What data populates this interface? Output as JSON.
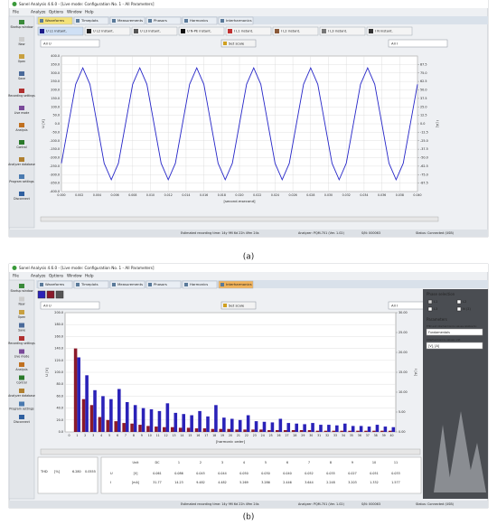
{
  "windows": [
    {
      "title": "Sonel Analysis 4.6.0 - [Live mode: Configuration No. 1 - All Parameters]",
      "menu": [
        "File",
        "Analyze",
        "Options",
        "Window",
        "Help"
      ],
      "tabs": [
        "Waveforms",
        "Timeplots",
        "Measurements",
        "Phasors",
        "Harmonics",
        "Interharmonics"
      ],
      "active_tab": 0,
      "sidebar": [
        "Startup window",
        "New",
        "Open",
        "Save",
        "Recording settings",
        "Live mode",
        "Analysis",
        "Control",
        "Analyzer database",
        "Program settings",
        "Disconnect"
      ],
      "channels": [
        {
          "label": "U L1 instant.",
          "color": "#1c1c8a"
        },
        {
          "label": "U L2 instant.",
          "color": "#222222"
        },
        {
          "label": "U L3 instant.",
          "color": "#555555"
        },
        {
          "label": "U N-PE instant.",
          "color": "#111111"
        },
        {
          "label": "I L1 instant.",
          "color": "#c03030"
        },
        {
          "label": "I L2 instant.",
          "color": "#8a5a3a"
        },
        {
          "label": "I L3 instant.",
          "color": "#777777"
        },
        {
          "label": "I N instant.",
          "color": "#333333"
        }
      ],
      "dropdown_left": "All U",
      "button": "Set scale",
      "dropdown_right": "All I",
      "status": [
        "Estimated recording time: 14y 9M 6d 22h 49m 24s",
        "Analyzer: PQM-701 (Ver. 1.02)",
        "S/N: 000063",
        "Status: Connected (USB)"
      ],
      "caption": "(a)"
    },
    {
      "title": "Sonel Analysis 4.6.0 - [Live mode: Configuration No. 1 - All Parameters]",
      "menu": [
        "File",
        "Analyze",
        "Options",
        "Window",
        "Help"
      ],
      "tabs": [
        "Waveforms",
        "Timeplots",
        "Measurements",
        "Phasors",
        "Harmonics",
        "Interharmonics"
      ],
      "active_tab": 5,
      "sidebar": [
        "Startup window",
        "New",
        "Open",
        "Save",
        "Recording settings",
        "Live mode",
        "Analysis",
        "Control",
        "Analyzer database",
        "Program settings",
        "Disconnect"
      ],
      "dropdown_left": "All U",
      "button": "Set scale",
      "dropdown_right": "All I",
      "status": [
        "Estimated recording time: 14y 9M 6d 22h 49m 24s",
        "Analyzer: PQM-701 (Ver. 1.02)",
        "S/N: 000063",
        "Status: Connected (USB)"
      ],
      "caption": "(b)",
      "panel": {
        "phase_title": "Phase selection",
        "phases": [
          "L1",
          "L2",
          "L3",
          "N (Σ)"
        ],
        "params_title": "Parameters",
        "relative_label": "THD and interharmonics values relative to:",
        "relative_value": "Fundamentals",
        "unit_label": "Interharmonics values unit",
        "unit_value": "[V], [A]"
      },
      "thd": {
        "label": "THD",
        "unit": "[%]",
        "values": [
          "6.280",
          "0.0555"
        ]
      },
      "table": {
        "header": [
          "Unit",
          "DC",
          "1",
          "2",
          "3",
          "4",
          "5",
          "6",
          "7",
          "8",
          "9",
          "10",
          "11"
        ],
        "rows": [
          [
            "U",
            "[V]",
            "0.061",
            "0.086",
            "0.045",
            "0.044",
            "0.050",
            "0.030",
            "0.040",
            "0.052",
            "0.035",
            "0.027",
            "0.051",
            "0.033"
          ],
          [
            "I",
            "[mA]",
            "31.77",
            "14.23",
            "9.482",
            "4.482",
            "5.269",
            "3.286",
            "2.446",
            "3.644",
            "2.248",
            "3.203",
            "1.332",
            "1.577"
          ]
        ]
      }
    }
  ],
  "chart_data": [
    {
      "type": "line",
      "xlabel": "[second.msecond]",
      "ylabel": "U [V]",
      "y2label": "I [A]",
      "color": "#2626c8",
      "grid": true,
      "x": [
        0,
        0.0008,
        0.0016,
        0.0024,
        0.0032,
        0.004,
        0.0048,
        0.0056,
        0.0064,
        0.0072,
        0.008,
        0.0088,
        0.0096,
        0.0104,
        0.0112,
        0.012,
        0.0128,
        0.0136,
        0.0144,
        0.0152,
        0.016,
        0.0168,
        0.0176,
        0.0184,
        0.0192,
        0.02,
        0.0208,
        0.0216,
        0.0224,
        0.0232,
        0.024,
        0.0248,
        0.0256,
        0.0264,
        0.0272,
        0.028,
        0.0288,
        0.0296,
        0.0304,
        0.0312,
        0.032,
        0.0328,
        0.0336,
        0.0344,
        0.0352,
        0.036,
        0.0368,
        0.0376,
        0.0384,
        0.0392,
        0.04
      ],
      "values": [
        -233,
        0,
        233,
        330,
        233,
        0,
        -233,
        -330,
        -233,
        0,
        233,
        330,
        233,
        0,
        -233,
        -330,
        -233,
        0,
        233,
        330,
        233,
        0,
        -233,
        -330,
        -233,
        0,
        233,
        330,
        233,
        0,
        -233,
        -330,
        -233,
        0,
        233,
        330,
        233,
        0,
        -233,
        -330,
        -233,
        0,
        233,
        330,
        233,
        0,
        -233,
        -330,
        -233,
        0,
        233
      ],
      "xlim": [
        0,
        0.04
      ],
      "xticks": [
        {
          "value": 0,
          "label": "0.000"
        },
        0.002,
        0.004,
        0.006,
        0.008,
        {
          "value": 0.01,
          "label": "0.010"
        },
        0.012,
        0.014,
        0.016,
        0.018,
        {
          "value": 0.02,
          "label": "0.020"
        },
        0.022,
        0.024,
        0.026,
        0.028,
        {
          "value": 0.03,
          "label": "0.030"
        },
        0.032,
        0.034,
        0.036,
        0.038,
        {
          "value": 0.04,
          "label": "0.040"
        }
      ],
      "ylim": [
        -400,
        400
      ],
      "yticks": [
        {
          "value": 400,
          "label": "400.0"
        },
        {
          "value": 350,
          "label": "350.0"
        },
        {
          "value": 300,
          "label": "300.0"
        },
        {
          "value": 250,
          "label": "250.0"
        },
        {
          "value": 200,
          "label": "200.0"
        },
        {
          "value": 150,
          "label": "150.0"
        },
        {
          "value": 100,
          "label": "100.0"
        },
        {
          "value": 50,
          "label": "50.0"
        },
        {
          "value": 0,
          "label": "0.0"
        },
        {
          "value": -50,
          "label": "-50.0"
        },
        {
          "value": -100,
          "label": "-100.0"
        },
        {
          "value": -150,
          "label": "-150.0"
        },
        {
          "value": -200,
          "label": "-200.0"
        },
        {
          "value": -250,
          "label": "-250.0"
        },
        {
          "value": -300,
          "label": "-300.0"
        },
        {
          "value": -350,
          "label": "-350.0"
        },
        {
          "value": -400,
          "label": "-400.0"
        }
      ],
      "y2lim": [
        -100,
        100
      ],
      "y2ticks": [
        87.5,
        {
          "value": 75,
          "label": "75.0"
        },
        62.5,
        {
          "value": 50,
          "label": "50.0"
        },
        37.5,
        {
          "value": 25,
          "label": "25.0"
        },
        12.5,
        {
          "value": 0,
          "label": "0.0"
        },
        -12.5,
        {
          "value": -25,
          "label": "-25.0"
        },
        -37.5,
        {
          "value": -50,
          "label": "-50.0"
        },
        -62.5,
        {
          "value": -75,
          "label": "-75.0"
        },
        -87.5
      ]
    },
    {
      "type": "bar",
      "xlabel": "[harmonic order]",
      "ylabel": "U [V]",
      "y2label": "I [A]",
      "grid": true,
      "categories": [
        0,
        1,
        2,
        3,
        4,
        5,
        6,
        7,
        8,
        9,
        10,
        11,
        12,
        13,
        14,
        15,
        16,
        17,
        18,
        19,
        20,
        21,
        22,
        23,
        24,
        25,
        26,
        27,
        28,
        29,
        30,
        31,
        32,
        33,
        34,
        35,
        36,
        37,
        38,
        39,
        40
      ],
      "series": [
        {
          "color": "#8b1a2a",
          "values": [
            0,
            140,
            55,
            45,
            25,
            20,
            18,
            15,
            14,
            12,
            10,
            9,
            8,
            8,
            7,
            7,
            6,
            6,
            5,
            5,
            5,
            4,
            4,
            4,
            4,
            3,
            3,
            3,
            3,
            3,
            3,
            2,
            2,
            2,
            2,
            2,
            2,
            2,
            2,
            2,
            2
          ]
        },
        {
          "color": "#2a22b8",
          "values": [
            0,
            125,
            95,
            70,
            60,
            55,
            72,
            50,
            45,
            40,
            38,
            35,
            48,
            32,
            30,
            28,
            35,
            26,
            45,
            24,
            22,
            20,
            28,
            18,
            17,
            16,
            22,
            15,
            14,
            13,
            15,
            12,
            12,
            11,
            14,
            10,
            10,
            9,
            12,
            9,
            8
          ]
        }
      ],
      "ylim": [
        0,
        200
      ],
      "yticks": [
        {
          "value": 0,
          "label": "0.0"
        },
        {
          "value": 20,
          "label": "20.0"
        },
        {
          "value": 40,
          "label": "40.0"
        },
        {
          "value": 60,
          "label": "60.0"
        },
        {
          "value": 80,
          "label": "80.0"
        },
        {
          "value": 100,
          "label": "100.0"
        },
        {
          "value": 120,
          "label": "120.0"
        },
        {
          "value": 140,
          "label": "140.0"
        },
        {
          "value": 160,
          "label": "160.0"
        },
        {
          "value": 180,
          "label": "180.0"
        },
        {
          "value": 200,
          "label": "200.0"
        }
      ],
      "y2lim": [
        0,
        30
      ],
      "y2ticks": [
        {
          "value": 0,
          "label": "0.00"
        },
        {
          "value": 5,
          "label": "5.00"
        },
        {
          "value": 10,
          "label": "10.00"
        },
        {
          "value": 15,
          "label": "15.00"
        },
        {
          "value": 20,
          "label": "20.00"
        },
        {
          "value": 25,
          "label": "25.00"
        },
        {
          "value": 30,
          "label": "30.00"
        }
      ]
    }
  ]
}
